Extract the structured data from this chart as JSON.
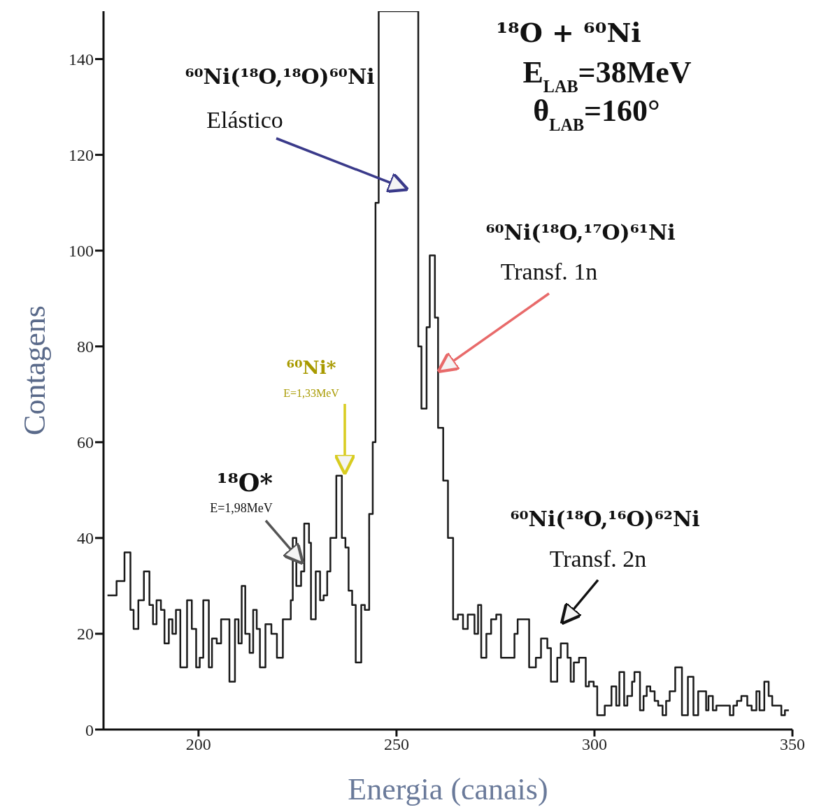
{
  "chart_data": {
    "type": "histogram",
    "xlabel": "Energia (canais)",
    "ylabel": "Contagens",
    "color": "#1a1a1a",
    "bins": [
      177,
      179.3,
      181.3,
      182.8,
      183.6,
      184.8,
      186.2,
      187.6,
      188.5,
      189.4,
      190.5,
      191.4,
      192.5,
      193.4,
      194.3,
      195.4,
      197.1,
      198.3,
      199.4,
      200.3,
      201.2,
      202.6,
      203.4,
      204.6,
      205.7,
      207.8,
      209.2,
      210.1,
      210.9,
      211.8,
      212.9,
      213.8,
      214.7,
      215.5,
      216.9,
      218.4,
      219.8,
      221.3,
      223.3,
      223.8,
      224.7,
      225.9,
      226.7,
      227.9,
      228.4,
      229.6,
      230.7,
      231.6,
      232.5,
      233.3,
      234.8,
      236.2,
      237.1,
      237.9,
      238.8,
      239.7,
      241.1,
      242,
      243.1,
      244,
      244.7,
      245.5,
      255.5,
      256.3,
      257.6,
      258.4,
      259.7,
      260.5,
      261.8,
      263,
      264.3,
      265.5,
      266.8,
      268,
      269.7,
      270.6,
      271.4,
      272.7,
      273.9,
      275.2,
      276.4,
      279.8,
      280.6,
      283.5,
      285.2,
      286.5,
      288.1,
      289,
      290.6,
      291.5,
      293.2,
      294,
      294.8,
      296.1,
      297.8,
      298.6,
      299.8,
      300.7,
      302.6,
      304.3,
      305.5,
      306.3,
      307.5,
      308.3,
      309.5,
      310.1,
      311.5,
      312.4,
      313.2,
      314.1,
      315.2,
      316.1,
      317.2,
      318.1,
      319,
      320.4,
      322.1,
      323.6,
      325,
      326.2,
      328.2,
      328.8,
      329.9,
      330.8,
      334.2,
      335.1,
      336,
      337.1,
      338.6,
      339.7,
      340.9,
      341.7,
      342.9,
      344,
      344.9,
      347.2,
      348.1,
      349.1
    ],
    "values": [
      28,
      31,
      37,
      25,
      21,
      27,
      33,
      26,
      22,
      27,
      25,
      18,
      23,
      20,
      25,
      13,
      27,
      21,
      13,
      15,
      27,
      13,
      19,
      18,
      23,
      10,
      23,
      18,
      30,
      20,
      16,
      25,
      21,
      13,
      22,
      20,
      15,
      23,
      27,
      40,
      30,
      33,
      43,
      39,
      23,
      33,
      27,
      28,
      33,
      40,
      53,
      40,
      38,
      29,
      26,
      14,
      26,
      25,
      45,
      60,
      110,
      150,
      80,
      67,
      84,
      99,
      86,
      63,
      52,
      40,
      23,
      24,
      21,
      24,
      20,
      26,
      15,
      20,
      23,
      24,
      15,
      20,
      23,
      13,
      15,
      19,
      17,
      10,
      15,
      18,
      15,
      10,
      14,
      15,
      9,
      10,
      9,
      3,
      5,
      9,
      5,
      12,
      5,
      7,
      10,
      12,
      4,
      7,
      9,
      8,
      6,
      5,
      3,
      6,
      8,
      13,
      3,
      11,
      3,
      8,
      4,
      7,
      4,
      5,
      3,
      5,
      6,
      7,
      5,
      4,
      8,
      4,
      10,
      7,
      5,
      3,
      4
    ],
    "xlim": [
      176,
      350
    ],
    "xticks": [
      200,
      250,
      300,
      350
    ],
    "ylim": [
      0,
      150
    ],
    "yticks": [
      0,
      20,
      40,
      60,
      80,
      100,
      120,
      140
    ],
    "annotations": [
      "⁶⁰Ni(¹⁸O,¹⁸O)⁶⁰Ni\nElástico",
      {
        "text": "⁶⁰Ni(¹⁸O,¹⁷O)⁶¹Ni\nTransf. 1n",
        "x": 261,
        "y": 75
      },
      "⁶⁰Ni(¹⁸O,¹⁶O)⁶²Ni\nTransf. 2n",
      {
        "text": "¹⁸O*\nE=1,98MeV",
        "x": 226,
        "y": 35
      },
      "⁶⁰Ni*\nE=1,33MeV",
      "¹⁸O + ⁶⁰Ni",
      "E$_{LAB}$=38MeV",
      "θ$_{LAB}$=160°"
    ]
  }
}
